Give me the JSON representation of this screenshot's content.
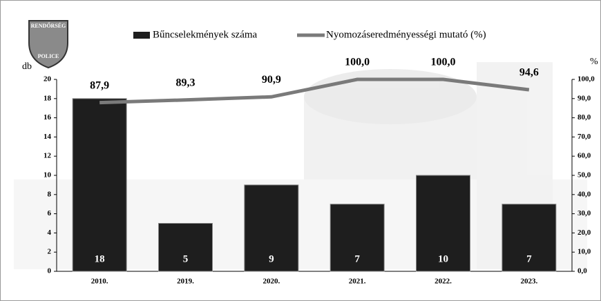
{
  "logo": {
    "top": "RENDŐRSÉG",
    "bottom": "POLICE"
  },
  "chart_data": {
    "type": "bar",
    "y_label": "db",
    "y2_label": "%",
    "categories": [
      "2010.",
      "2019.",
      "2020.",
      "2021.",
      "2022.",
      "2023."
    ],
    "series": [
      {
        "name": "Bűncselekmények száma",
        "type": "bar",
        "color": "#1e1e1e",
        "values": [
          18,
          5,
          9,
          7,
          10,
          7
        ]
      },
      {
        "name": "Nyomozáseredményességi mutató (%)",
        "type": "line",
        "axis": "y2",
        "color": "#7a7a7a",
        "values": [
          87.9,
          89.3,
          90.9,
          100.0,
          100.0,
          94.6
        ],
        "value_labels": [
          "87,9",
          "89,3",
          "90,9",
          "100,0",
          "100,0",
          "94,6"
        ]
      }
    ],
    "ylim": [
      0,
      20
    ],
    "yticks": [
      0,
      2,
      4,
      6,
      8,
      10,
      12,
      14,
      16,
      18,
      20
    ],
    "y2lim": [
      0,
      100
    ],
    "y2ticks": [
      {
        "value": 0,
        "label": "0,0"
      },
      {
        "value": 10,
        "label": "10,0"
      },
      {
        "value": 20,
        "label": "20,0"
      },
      {
        "value": 30,
        "label": "30,0"
      },
      {
        "value": 40,
        "label": "40,0"
      },
      {
        "value": 50,
        "label": "50,0"
      },
      {
        "value": 60,
        "label": "60,0"
      },
      {
        "value": 70,
        "label": "70,0"
      },
      {
        "value": 80,
        "label": "80,0"
      },
      {
        "value": 90,
        "label": "90,0"
      },
      {
        "value": 100,
        "label": "100,0"
      }
    ],
    "legend": "top"
  }
}
